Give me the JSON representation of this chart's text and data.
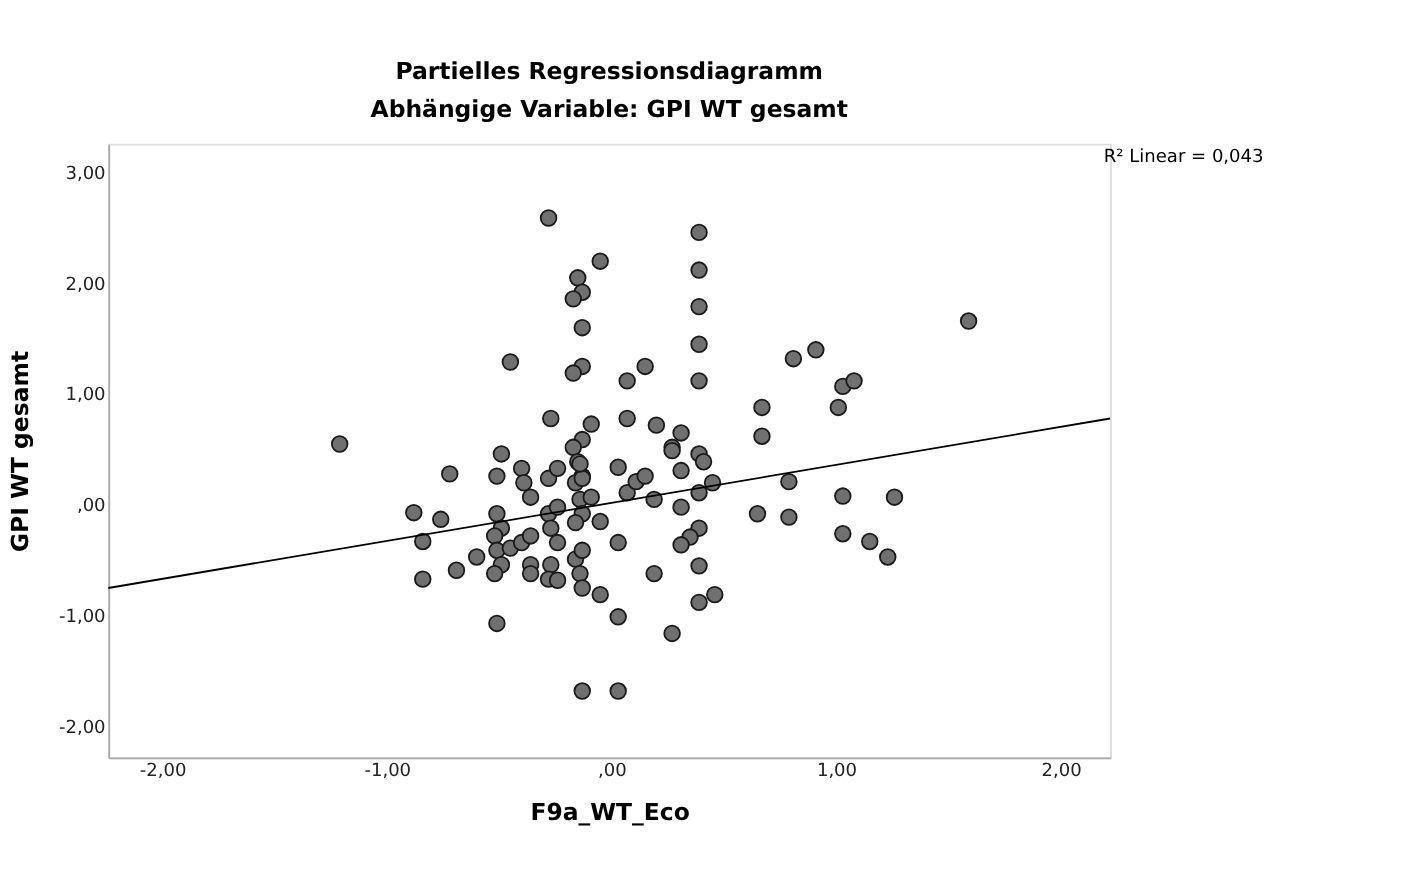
{
  "chart_data": {
    "type": "scatter",
    "title": "Partielles Regressionsdiagramm",
    "subtitle": "Abhängige Variable: GPI WT gesamt",
    "xlabel": "F9a_WT_Eco",
    "ylabel": "GPI WT gesamt",
    "annotations": [
      "R² Linear = 0,043"
    ],
    "xlim": [
      -2.24,
      2.22
    ],
    "ylim": [
      -2.28,
      3.26
    ],
    "xticks": [
      {
        "value": -2,
        "label": "-2,00"
      },
      {
        "value": -1,
        "label": "-1,00"
      },
      {
        "value": 0,
        "label": ",00"
      },
      {
        "value": 1,
        "label": "1,00"
      },
      {
        "value": 2,
        "label": "2,00"
      }
    ],
    "yticks": [
      {
        "value": -2,
        "label": "-2,00"
      },
      {
        "value": -1,
        "label": "-1,00"
      },
      {
        "value": 0,
        "label": ",00"
      },
      {
        "value": 1,
        "label": "1,00"
      },
      {
        "value": 2,
        "label": "2,00"
      },
      {
        "value": 3,
        "label": "3,00"
      }
    ],
    "grid": false,
    "series": [
      {
        "marker": "circle",
        "color": "#707070",
        "x": [
          -0.28,
          -0.05,
          -0.15,
          -0.13,
          -0.17,
          -0.13,
          -0.13,
          -0.17,
          0.07,
          0.15,
          0.39,
          0.39,
          0.39,
          0.39,
          0.39,
          1.59,
          0.81,
          0.91,
          1.03,
          1.08,
          1.01,
          0.67,
          0.67,
          -0.27,
          -0.09,
          0.07,
          0.2,
          0.31,
          0.27,
          -0.13,
          -0.17,
          -0.15,
          -0.13,
          -0.45,
          -1.21,
          -0.88,
          -0.76,
          -0.72,
          -0.84,
          -0.84,
          -0.69,
          -0.6,
          -0.51,
          -0.49,
          -0.51,
          -0.49,
          -0.52,
          -0.51,
          -0.49,
          -0.52,
          -0.51,
          -0.45,
          -0.4,
          -0.36,
          -0.36,
          -0.36,
          -0.4,
          -0.39,
          -0.36,
          -0.28,
          -0.24,
          -0.28,
          -0.24,
          -0.27,
          -0.24,
          -0.27,
          -0.28,
          -0.24,
          -0.16,
          -0.14,
          -0.13,
          -0.14,
          -0.13,
          -0.16,
          -0.09,
          -0.05,
          -0.16,
          -0.13,
          -0.14,
          -0.13,
          -0.05,
          0.03,
          0.03,
          -0.13,
          0.03,
          0.03,
          0.07,
          0.11,
          0.15,
          0.19,
          0.27,
          0.31,
          0.39,
          0.41,
          0.45,
          0.39,
          0.31,
          0.39,
          0.35,
          0.31,
          0.39,
          0.46,
          0.39,
          0.19,
          0.27,
          0.65,
          0.79,
          0.79,
          1.03,
          1.26,
          1.03,
          1.15,
          1.23
        ],
        "values": [
          2.59,
          2.2,
          2.05,
          1.92,
          1.86,
          1.6,
          1.25,
          1.19,
          1.12,
          1.25,
          2.46,
          2.12,
          1.79,
          1.45,
          1.12,
          1.66,
          1.32,
          1.4,
          1.07,
          1.12,
          0.88,
          0.88,
          0.62,
          0.78,
          0.73,
          0.78,
          0.72,
          0.65,
          0.52,
          0.59,
          0.52,
          0.39,
          0.26,
          1.29,
          0.55,
          -0.07,
          -0.13,
          0.28,
          -0.33,
          -0.67,
          -0.59,
          -0.47,
          0.26,
          0.46,
          -0.08,
          -0.21,
          -0.28,
          -0.41,
          -0.54,
          -0.62,
          -1.07,
          -0.39,
          -0.34,
          -0.28,
          -0.54,
          -0.62,
          0.33,
          0.2,
          0.07,
          0.24,
          0.33,
          -0.08,
          -0.02,
          -0.21,
          -0.34,
          -0.54,
          -0.67,
          -0.68,
          0.2,
          0.05,
          0.24,
          0.37,
          -0.08,
          -0.16,
          0.07,
          -0.15,
          -0.49,
          -0.41,
          -0.62,
          -0.75,
          -0.81,
          -0.34,
          -1.01,
          -1.68,
          -1.68,
          0.34,
          0.11,
          0.21,
          0.26,
          0.05,
          0.49,
          0.31,
          0.46,
          0.39,
          0.2,
          0.11,
          -0.02,
          -0.21,
          -0.29,
          -0.36,
          -0.55,
          -0.81,
          -0.88,
          -0.62,
          -1.16,
          -0.08,
          0.21,
          -0.11,
          0.08,
          0.07,
          -0.26,
          -0.33,
          -0.47
        ]
      },
      {
        "type": "line",
        "marker": "none",
        "color": "#000000",
        "x": [
          -2.24,
          2.22
        ],
        "values": [
          -0.75,
          0.78
        ]
      }
    ]
  }
}
